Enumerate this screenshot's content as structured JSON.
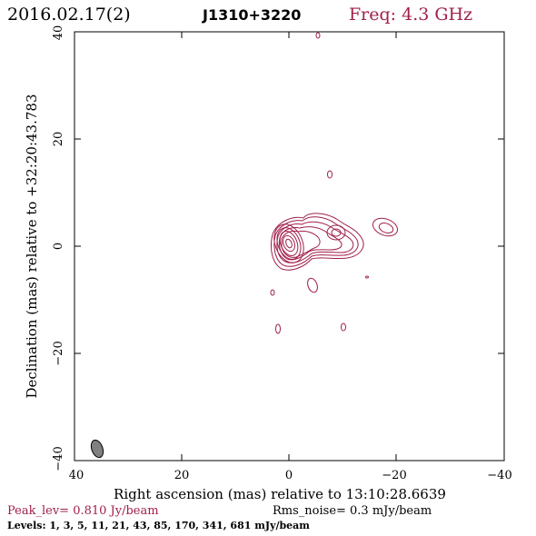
{
  "header": {
    "date": "2016.02.17(2)",
    "source": "J1310+3220",
    "freq": "Freq: 4.3 GHz"
  },
  "axes": {
    "xlabel": "Right ascension (mas) relative to 13:10:28.6639",
    "ylabel": "Declination (mas) relative to +32:20:43.783",
    "x_range": [
      40,
      -40
    ],
    "y_range": [
      -40,
      40
    ],
    "x_ticks": [
      "40",
      "20",
      "0",
      "−20",
      "−40"
    ],
    "y_ticks": [
      "40",
      "20",
      "0",
      "−20",
      "−40"
    ]
  },
  "footer": {
    "peak": "Peak_lev=  0.810 Jy/beam",
    "rms": "Rms_noise=  0.3 mJy/beam",
    "levels": "Levels:   1,   3,   5,  11,  21,  43,  85, 170, 341, 681 mJy/beam"
  },
  "colors": {
    "contour": "#a0204a",
    "axis": "#000000",
    "beam_fill": "#808080"
  }
}
